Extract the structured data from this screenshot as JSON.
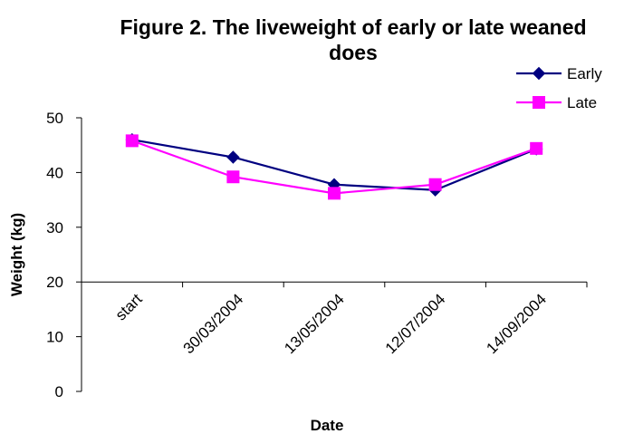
{
  "chart_data": {
    "type": "line",
    "title_line1": "Figure 2. The liveweight of early or late weaned",
    "title_line2": "does",
    "xlabel": "Date",
    "ylabel": "Weight (kg)",
    "categories": [
      "start",
      "30/03/2004",
      "13/05/2004",
      "12/07/2004",
      "14/09/2004"
    ],
    "ylim": [
      0,
      50
    ],
    "yticks": [
      0,
      10,
      20,
      30,
      40,
      50
    ],
    "x_axis_crosses_at": 20,
    "grid": false,
    "legend_position": "top-right",
    "series": [
      {
        "name": "Early",
        "values": [
          46.0,
          42.8,
          37.8,
          36.8,
          44.3
        ],
        "color": "#000080",
        "marker": "diamond"
      },
      {
        "name": "Late",
        "values": [
          45.8,
          39.2,
          36.2,
          37.8,
          44.4
        ],
        "color": "#FF00FF",
        "marker": "square"
      }
    ]
  }
}
